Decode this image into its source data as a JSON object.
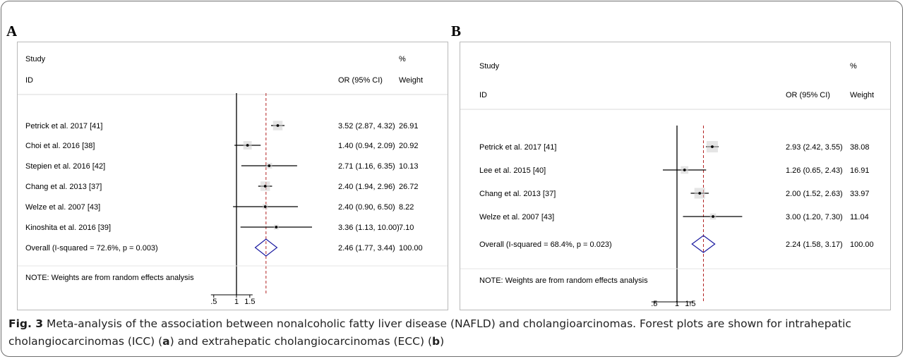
{
  "chart_data": [
    {
      "type": "forest",
      "panel": "A",
      "header": {
        "study_line1": "Study",
        "study_line2": "ID",
        "or_label": "OR (95% CI)",
        "weight_line1": "%",
        "weight_line2": "Weight"
      },
      "studies": [
        {
          "label": "Petrick et al. 2017 [41]",
          "or": 3.52,
          "lo": 2.87,
          "hi": 4.32,
          "ci_text": "3.52 (2.87, 4.32)",
          "weight": "26.91"
        },
        {
          "label": "Choi et al. 2016 [38]",
          "or": 1.4,
          "lo": 0.94,
          "hi": 2.09,
          "ci_text": "1.40 (0.94, 2.09)",
          "weight": "20.92"
        },
        {
          "label": "Stepien et al. 2016 [42]",
          "or": 2.71,
          "lo": 1.16,
          "hi": 6.35,
          "ci_text": "2.71 (1.16, 6.35)",
          "weight": "10.13"
        },
        {
          "label": "Chang et al. 2013 [37]",
          "or": 2.4,
          "lo": 1.94,
          "hi": 2.96,
          "ci_text": "2.40 (1.94, 2.96)",
          "weight": "26.72"
        },
        {
          "label": "Welze et al. 2007 [43]",
          "or": 2.4,
          "lo": 0.9,
          "hi": 6.5,
          "ci_text": "2.40 (0.90, 6.50)",
          "weight": "8.22"
        },
        {
          "label": "Kinoshita et al. 2016 [39]",
          "or": 3.36,
          "lo": 1.13,
          "hi": 10.0,
          "ci_text": "3.36 (1.13, 10.00)",
          "weight": "7.10"
        }
      ],
      "overall": {
        "label": "Overall  (I-squared = 72.6%, p = 0.003)",
        "or": 2.46,
        "lo": 1.77,
        "hi": 3.44,
        "ci_text": "2.46 (1.77, 3.44)",
        "weight": "100.00"
      },
      "note": "NOTE: Weights are from random effects analysis",
      "x_ticks": [
        ".5",
        "1",
        "1.5"
      ],
      "x_scale": "log",
      "null_line": 1,
      "xlim": [
        0.35,
        10.0
      ]
    },
    {
      "type": "forest",
      "panel": "B",
      "header": {
        "study_line1": "Study",
        "study_line2": "ID",
        "or_label": "OR (95% CI)",
        "weight_line1": "%",
        "weight_line2": "Weight"
      },
      "studies": [
        {
          "label": "Petrick et al. 2017 [41]",
          "or": 2.93,
          "lo": 2.42,
          "hi": 3.55,
          "ci_text": "2.93 (2.42, 3.55)",
          "weight": "38.08"
        },
        {
          "label": "Lee et al. 2015 [40]",
          "or": 1.26,
          "lo": 0.65,
          "hi": 2.43,
          "ci_text": "1.26 (0.65, 2.43)",
          "weight": "16.91"
        },
        {
          "label": "Chang et al. 2013 [37]",
          "or": 2.0,
          "lo": 1.52,
          "hi": 2.63,
          "ci_text": "2.00 (1.52, 2.63)",
          "weight": "33.97"
        },
        {
          "label": "Welze et al. 2007 [43]",
          "or": 3.0,
          "lo": 1.2,
          "hi": 7.3,
          "ci_text": "3.00 (1.20, 7.30)",
          "weight": "11.04"
        }
      ],
      "overall": {
        "label": "Overall  (I-squared = 68.4%, p = 0.023)",
        "or": 2.24,
        "lo": 1.58,
        "hi": 3.17,
        "ci_text": "2.24 (1.58, 3.17)",
        "weight": "100.00"
      },
      "note": "NOTE: Weights are from random effects analysis",
      "x_ticks": [
        ".5",
        "1",
        "1.5"
      ],
      "x_scale": "log",
      "null_line": 1,
      "xlim": [
        0.35,
        7.3
      ]
    }
  ],
  "caption": {
    "fig_label": "Fig. 3",
    "text_1": " Meta-analysis of the association between nonalcoholic fatty liver disease (NAFLD) and cholangioarcinomas. Forest plots are shown for intrahepatic cholangiocarcinomas (ICC) (",
    "letter_a": "a",
    "text_2": ") and extrahepatic cholangiocarcinomas (ECC) (",
    "letter_b": "b",
    "text_3": ")"
  },
  "colors": {
    "axis": "#000000",
    "ci_line": "#000000",
    "diamond": "#1a1aa0",
    "dashed_line": "#b22222"
  }
}
